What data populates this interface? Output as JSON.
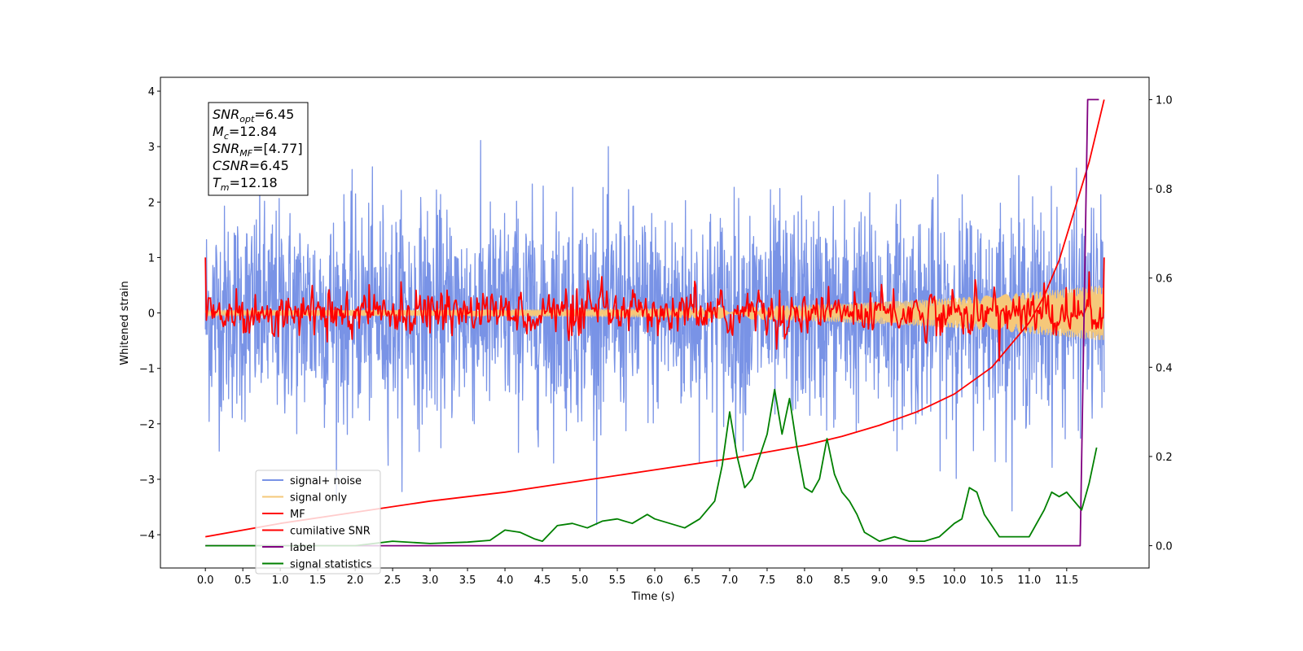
{
  "chart_data": {
    "type": "line",
    "xlabel": "Time (s)",
    "ylabel": "Whitened strain",
    "xlim": [
      -0.6,
      12.6
    ],
    "ylim": [
      -4.6,
      4.25
    ],
    "y2lim": [
      -0.05,
      1.05
    ],
    "x_ticks": [
      "0.0",
      "0.5",
      "1.0",
      "1.5",
      "2.0",
      "2.5",
      "3.0",
      "3.5",
      "4.0",
      "4.5",
      "5.0",
      "5.5",
      "6.0",
      "6.5",
      "7.0",
      "7.5",
      "8.0",
      "8.5",
      "9.0",
      "9.5",
      "10.0",
      "10.5",
      "11.0",
      "11.5"
    ],
    "y_ticks": [
      "4",
      "3",
      "2",
      "1",
      "0",
      "−1",
      "−2",
      "−3",
      "−4"
    ],
    "y2_ticks": [
      "1.0",
      "0.8",
      "0.6",
      "0.4",
      "0.2",
      "0.0"
    ],
    "duration": 12.0,
    "annotation": [
      {
        "base": "SNR",
        "sub": "opt",
        "value": "=6.45"
      },
      {
        "base": "M",
        "sub": "c",
        "value": "=12.84"
      },
      {
        "base": "SNR",
        "sub": "MF",
        "value": "=[4.77]"
      },
      {
        "base": "CSNR",
        "sub": "",
        "value": "=6.45"
      },
      {
        "base": "T",
        "sub": "m",
        "value": "=12.18"
      }
    ],
    "series": [
      {
        "name": "signal+ noise",
        "color": "#7993e6",
        "axis": "left",
        "style": "noise",
        "amplitude": 1.0
      },
      {
        "name": "signal only",
        "color": "#f5c87a",
        "axis": "left",
        "style": "chirp",
        "amp_start": 0.05,
        "amp_end": 0.5
      },
      {
        "name": "MF",
        "color": "#ff0000",
        "axis": "left",
        "style": "mf",
        "amplitude": 0.18,
        "endpoints": [
          1.0,
          1.0
        ]
      },
      {
        "name": "cumilative SNR",
        "color": "#ff0000",
        "axis": "right",
        "x": [
          0.0,
          1.0,
          2.0,
          3.0,
          4.0,
          5.0,
          6.0,
          7.0,
          8.0,
          8.5,
          9.0,
          9.5,
          10.0,
          10.5,
          11.0,
          11.2,
          11.4,
          11.6,
          11.8,
          12.0
        ],
        "values": [
          0.02,
          0.05,
          0.075,
          0.1,
          0.12,
          0.145,
          0.17,
          0.195,
          0.225,
          0.245,
          0.27,
          0.3,
          0.34,
          0.4,
          0.5,
          0.56,
          0.64,
          0.75,
          0.86,
          1.0
        ]
      },
      {
        "name": "label",
        "color": "#800080",
        "axis": "right",
        "x": [
          0.0,
          11.68,
          11.68,
          11.78,
          11.78,
          11.93
        ],
        "values": [
          0.0,
          0.0,
          0.0,
          1.0,
          1.0,
          1.0
        ]
      },
      {
        "name": "signal statistics",
        "color": "#008000",
        "axis": "right",
        "x": [
          0.0,
          0.5,
          1.0,
          1.5,
          2.0,
          2.5,
          3.0,
          3.5,
          3.8,
          4.0,
          4.2,
          4.4,
          4.5,
          4.7,
          4.9,
          5.1,
          5.3,
          5.5,
          5.7,
          5.9,
          6.0,
          6.2,
          6.4,
          6.6,
          6.8,
          6.9,
          7.0,
          7.1,
          7.2,
          7.3,
          7.4,
          7.5,
          7.6,
          7.7,
          7.8,
          7.9,
          8.0,
          8.1,
          8.2,
          8.3,
          8.4,
          8.5,
          8.6,
          8.7,
          8.8,
          9.0,
          9.2,
          9.4,
          9.6,
          9.8,
          10.0,
          10.1,
          10.2,
          10.3,
          10.4,
          10.6,
          10.8,
          11.0,
          11.2,
          11.3,
          11.4,
          11.5,
          11.6,
          11.7,
          11.8,
          11.9
        ],
        "values": [
          0.0,
          0.0,
          0.0,
          0.0,
          0.0,
          0.01,
          0.005,
          0.008,
          0.012,
          0.035,
          0.03,
          0.015,
          0.01,
          0.045,
          0.05,
          0.04,
          0.055,
          0.06,
          0.05,
          0.07,
          0.06,
          0.05,
          0.04,
          0.06,
          0.1,
          0.18,
          0.3,
          0.2,
          0.13,
          0.15,
          0.2,
          0.25,
          0.35,
          0.25,
          0.33,
          0.22,
          0.13,
          0.12,
          0.15,
          0.24,
          0.16,
          0.12,
          0.1,
          0.07,
          0.03,
          0.01,
          0.02,
          0.01,
          0.01,
          0.02,
          0.05,
          0.06,
          0.13,
          0.12,
          0.07,
          0.02,
          0.02,
          0.02,
          0.08,
          0.12,
          0.11,
          0.12,
          0.1,
          0.08,
          0.14,
          0.22
        ]
      }
    ],
    "legend_position": "lower-left",
    "grid": false
  }
}
